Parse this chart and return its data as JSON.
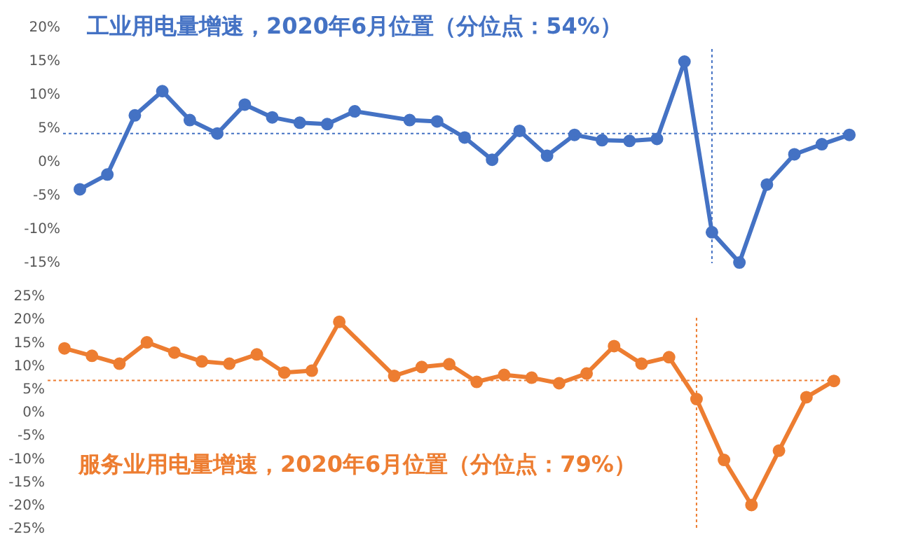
{
  "chart_data": [
    {
      "type": "line",
      "title": "工业用电量增速，2020年6月位置（分位点：54%）",
      "categories": [
        null,
        null,
        null,
        null,
        null,
        null,
        null,
        null,
        null,
        null,
        null,
        null,
        null,
        null,
        null,
        null,
        null,
        null,
        null,
        null,
        null,
        null,
        null,
        null,
        null,
        null,
        null,
        null,
        null
      ],
      "series": [
        {
          "color": "#4472c4",
          "values": [
            -4,
            -1.8,
            7,
            10.6,
            6.3,
            4.3,
            8.6,
            6.7,
            5.9,
            5.7,
            7.6,
            null,
            6.3,
            6.1,
            3.7,
            0.4,
            4.7,
            1,
            4.1,
            3.3,
            3.2,
            3.5,
            15,
            -10.4,
            -14.9,
            -3.3,
            1.2,
            2.7,
            4.1
          ]
        }
      ],
      "ylim": [
        -15,
        20
      ],
      "yticks": [
        {
          "value": -15,
          "label": "-15%"
        },
        {
          "value": -10,
          "label": "-10%"
        },
        {
          "value": -5,
          "label": "-5%"
        },
        {
          "value": 0,
          "label": "0%"
        },
        {
          "value": 5,
          "label": "5%"
        },
        {
          "value": 10,
          "label": "10%"
        },
        {
          "value": 15,
          "label": "15%"
        },
        {
          "value": 20,
          "label": "20%"
        }
      ],
      "tick_labels": "y",
      "marker": "circle",
      "ref_lines": [
        {
          "axis": "y",
          "value": 4.3,
          "color": "#4472c4",
          "line_style": "dotted"
        }
      ]
    },
    {
      "type": "line",
      "title": "服务业用电量增速，2020年6月位置（分位点：79%）",
      "categories": [
        null,
        null,
        null,
        null,
        null,
        null,
        null,
        null,
        null,
        null,
        null,
        null,
        null,
        null,
        null,
        null,
        null,
        null,
        null,
        null,
        null,
        null,
        null,
        null,
        null,
        null,
        null,
        null,
        null
      ],
      "series": [
        {
          "color": "#ed7d31",
          "values": [
            13.9,
            12.3,
            10.6,
            15.2,
            13,
            11.1,
            10.6,
            12.6,
            8.7,
            9.1,
            19.6,
            null,
            8,
            9.9,
            10.5,
            6.7,
            8.2,
            7.6,
            6.4,
            8.5,
            14.4,
            10.6,
            12,
            3,
            -10.1,
            -19.8,
            -8.1,
            3.4,
            6.9
          ]
        }
      ],
      "ylim": [
        -25,
        25
      ],
      "yticks": [
        {
          "value": -25,
          "label": "-25%"
        },
        {
          "value": -20,
          "label": "-20%"
        },
        {
          "value": -15,
          "label": "-15%"
        },
        {
          "value": -10,
          "label": "-10%"
        },
        {
          "value": -5,
          "label": "-5%"
        },
        {
          "value": 0,
          "label": "0%"
        },
        {
          "value": 5,
          "label": "5%"
        },
        {
          "value": 10,
          "label": "10%"
        },
        {
          "value": 15,
          "label": "15%"
        },
        {
          "value": 20,
          "label": "20%"
        },
        {
          "value": 25,
          "label": "25%"
        }
      ],
      "tick_labels": "y",
      "marker": "circle",
      "ref_lines": [
        {
          "axis": "y",
          "value": 7,
          "color": "#ed7d31",
          "line_style": "dotted"
        }
      ]
    }
  ]
}
